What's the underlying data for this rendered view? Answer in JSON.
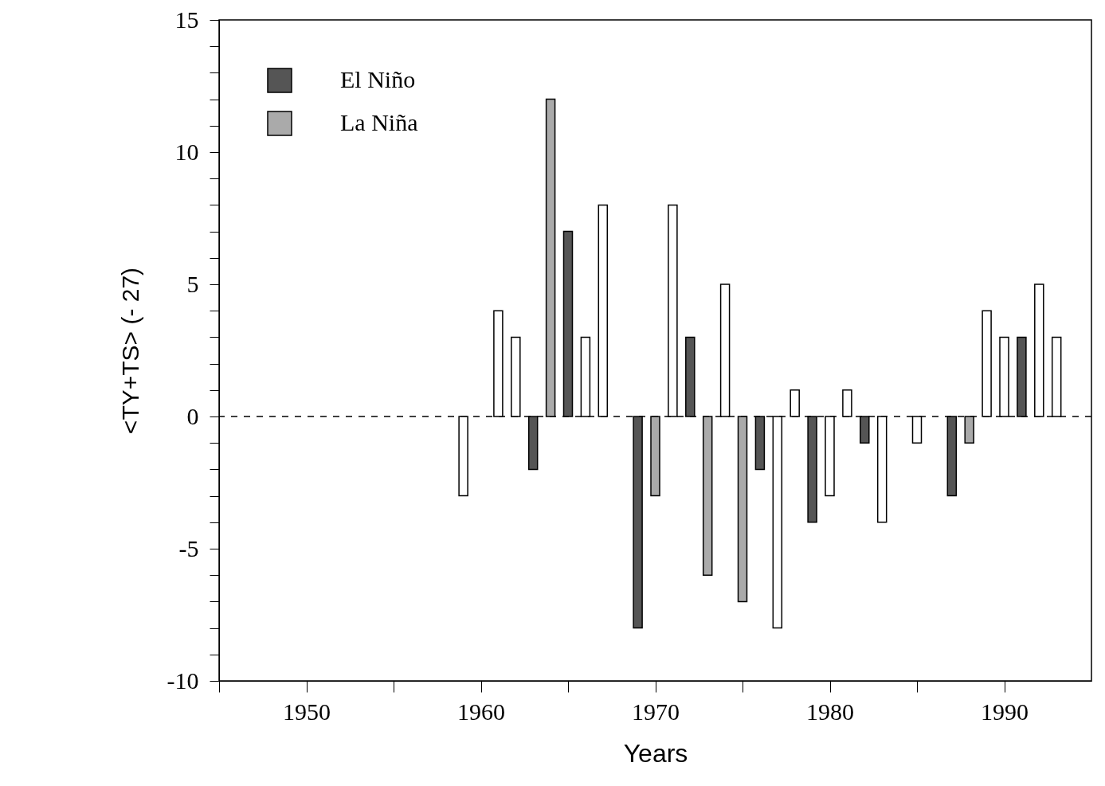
{
  "chart_data": {
    "type": "bar",
    "xlabel": "Years",
    "ylabel": "<TY+TS> (- 27)",
    "xlim": [
      1945,
      1995
    ],
    "xticks": [
      {
        "value": 1945,
        "label": null
      },
      1950,
      {
        "value": 1955,
        "label": null
      },
      1960,
      {
        "value": 1965,
        "label": null
      },
      1970,
      {
        "value": 1975,
        "label": null
      },
      1980,
      {
        "value": 1985,
        "label": null
      },
      1990
    ],
    "ylim": [
      -10,
      15
    ],
    "yticks": [
      -10,
      {
        "value": -9,
        "label": null
      },
      {
        "value": -8,
        "label": null
      },
      {
        "value": -7,
        "label": null
      },
      {
        "value": -6,
        "label": null
      },
      -5,
      {
        "value": -4,
        "label": null
      },
      {
        "value": -3,
        "label": null
      },
      {
        "value": -2,
        "label": null
      },
      {
        "value": -1,
        "label": null
      },
      0,
      {
        "value": 1,
        "label": null
      },
      {
        "value": 2,
        "label": null
      },
      {
        "value": 3,
        "label": null
      },
      {
        "value": 4,
        "label": null
      },
      5,
      {
        "value": 6,
        "label": null
      },
      {
        "value": 7,
        "label": null
      },
      {
        "value": 8,
        "label": null
      },
      {
        "value": 9,
        "label": null
      },
      10,
      {
        "value": 11,
        "label": null
      },
      {
        "value": 12,
        "label": null
      },
      {
        "value": 13,
        "label": null
      },
      {
        "value": 14,
        "label": null
      },
      15
    ],
    "series": [
      {
        "color": "#ffffff",
        "x": [
          1959,
          1961,
          1962,
          1966,
          1967,
          1971,
          1974,
          1977,
          1978,
          1980,
          1981,
          1983,
          1985,
          1989,
          1990,
          1992,
          1993
        ],
        "values": [
          -3,
          4,
          3,
          3,
          8,
          8,
          5,
          -8,
          1,
          -3,
          1,
          -4,
          -1,
          4,
          3,
          5,
          3
        ]
      },
      {
        "name": "El Niño",
        "color": "#555555",
        "x": [
          1963,
          1965,
          1969,
          1972,
          1976,
          1979,
          1982,
          1987,
          1991
        ],
        "values": [
          -2,
          7,
          -8,
          3,
          -2,
          -4,
          -1,
          -3,
          3
        ]
      },
      {
        "name": "La Niña",
        "color": "#aaaaaa",
        "x": [
          1964,
          1970,
          1973,
          1975,
          1988
        ],
        "values": [
          12,
          -3,
          -6,
          -7,
          -1
        ]
      }
    ],
    "ref_lines": [
      {
        "axis": "y",
        "value": 0,
        "line_style": "dashed"
      }
    ],
    "legend": "top left",
    "grid": false
  }
}
